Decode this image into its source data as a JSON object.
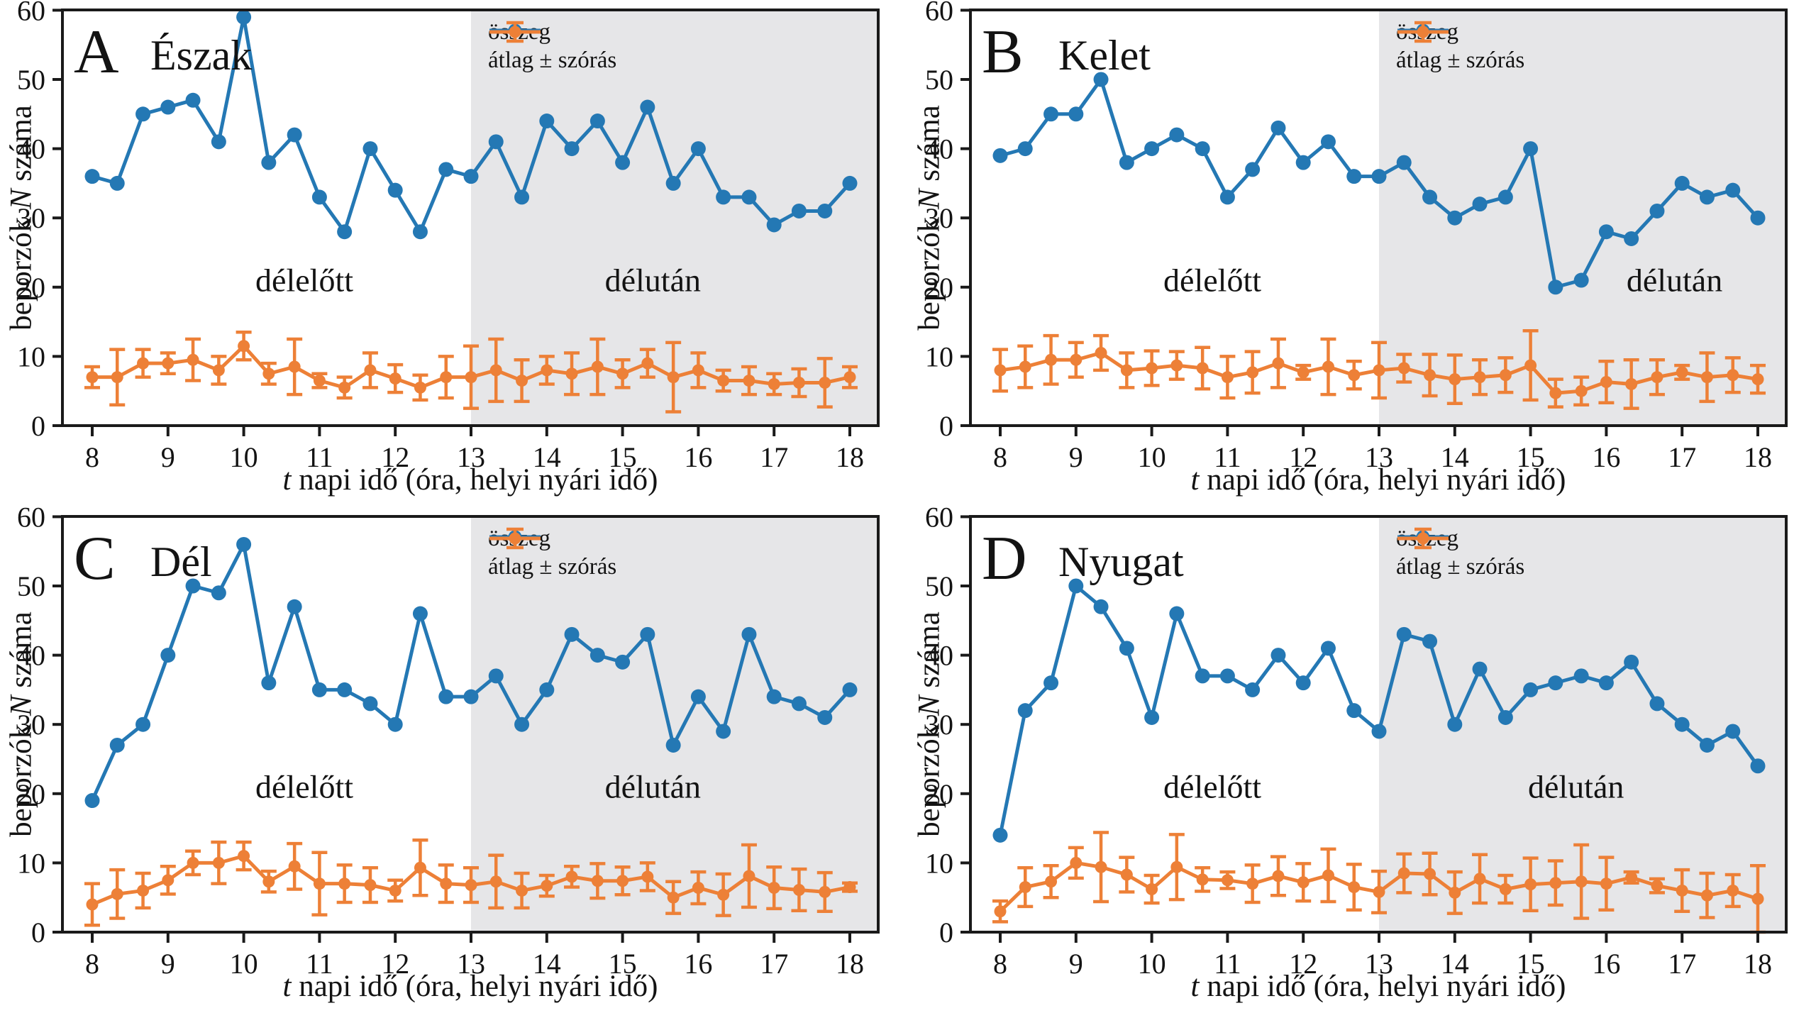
{
  "colors": {
    "blue": "#2478b4",
    "orange": "#ed8037",
    "shade": "#e6e6e8",
    "text": "#131313",
    "axis": "#1a1a1a"
  },
  "legend": {
    "total": "összeg",
    "mean": "átlag ± szórás"
  },
  "labels": {
    "morning": "délelőtt",
    "afternoon": "délután",
    "ylabel_pre": "beporzók ",
    "ylabel_it": "N",
    "ylabel_post": " száma",
    "xlabel_it": "t",
    "xlabel_post": " napi idő (óra, helyi nyári idő)"
  },
  "chart_data": {
    "type": "line",
    "x": [
      8,
      8.33,
      8.67,
      9,
      9.33,
      9.67,
      10,
      10.33,
      10.67,
      11,
      11.33,
      11.67,
      12,
      12.33,
      12.67,
      13,
      13.33,
      13.67,
      14,
      14.33,
      14.67,
      15,
      15.33,
      15.67,
      16,
      16.33,
      16.67,
      17,
      17.33,
      17.67,
      18
    ],
    "xticks": [
      8,
      9,
      10,
      11,
      12,
      13,
      14,
      15,
      16,
      17,
      18
    ],
    "yticks": [
      0,
      10,
      20,
      30,
      40,
      50,
      60
    ],
    "ylim": [
      0,
      60
    ],
    "xlim": [
      8,
      18
    ],
    "afternoon_start": 13,
    "grid": false,
    "legend_position": "top-right",
    "series_names": [
      "összeg",
      "átlag ± szórás"
    ],
    "panels": [
      {
        "letter": "A",
        "title": "Észak",
        "total": [
          36,
          35,
          45,
          46,
          47,
          41,
          59,
          38,
          42,
          33,
          28,
          40,
          34,
          28,
          37,
          36,
          41,
          33,
          44,
          40,
          44,
          38,
          46,
          35,
          40,
          33,
          33,
          29,
          31,
          31,
          35
        ],
        "mean": [
          7,
          7,
          9,
          9,
          9.5,
          8,
          11.5,
          7.5,
          8.5,
          6.5,
          5.5,
          8,
          6.8,
          5.5,
          7,
          7,
          8,
          6.5,
          8,
          7.5,
          8.5,
          7.5,
          9,
          7,
          8,
          6.5,
          6.5,
          6,
          6.2,
          6.2,
          7
        ],
        "sd": [
          1.5,
          4,
          2,
          1.5,
          3,
          2,
          2,
          1.5,
          4,
          1,
          1.5,
          2.5,
          2,
          1.8,
          3,
          4.5,
          4.5,
          3,
          2,
          3,
          4,
          2,
          2,
          5,
          2.5,
          1.5,
          2,
          1.5,
          2,
          3.5,
          1.5
        ],
        "morning_label_t": 10.8,
        "afternoon_label_t": 15.4,
        "label_v": 21
      },
      {
        "letter": "B",
        "title": "Kelet",
        "total": [
          39,
          40,
          45,
          45,
          50,
          38,
          40,
          42,
          40,
          33,
          37,
          43,
          38,
          41,
          36,
          36,
          38,
          33,
          30,
          32,
          33,
          40,
          20,
          21,
          28,
          27,
          31,
          35,
          33,
          34,
          30
        ],
        "mean": [
          8,
          8.5,
          9.5,
          9.5,
          10.5,
          8,
          8.3,
          8.7,
          8.3,
          7,
          7.7,
          9,
          7.7,
          8.5,
          7.3,
          8,
          8.3,
          7.3,
          6.7,
          7,
          7.3,
          8.7,
          4.7,
          5,
          6.3,
          6,
          7,
          7.7,
          7,
          7.3,
          6.7
        ],
        "sd": [
          3,
          3,
          3.5,
          2.5,
          2.5,
          2.5,
          2.5,
          2,
          3,
          3,
          3,
          3.5,
          1,
          4,
          2,
          4,
          2,
          3,
          3.5,
          2.5,
          2.5,
          5,
          2,
          2,
          3,
          3.5,
          2.5,
          1,
          3.5,
          2.5,
          2
        ],
        "morning_label_t": 10.8,
        "afternoon_label_t": 16.9,
        "label_v": 21
      },
      {
        "letter": "C",
        "title": "Dél",
        "total": [
          19,
          27,
          30,
          40,
          50,
          49,
          56,
          36,
          47,
          35,
          35,
          33,
          30,
          46,
          34,
          34,
          37,
          30,
          35,
          43,
          40,
          39,
          43,
          27,
          34,
          29,
          43,
          34,
          33,
          31,
          35
        ],
        "mean": [
          4,
          5.5,
          6,
          7.5,
          10,
          10,
          11,
          7.3,
          9.5,
          7,
          7,
          6.8,
          6,
          9.3,
          7,
          6.8,
          7.3,
          6,
          6.7,
          8,
          7.4,
          7.4,
          8,
          5,
          6.4,
          5.4,
          8.1,
          6.4,
          6.1,
          5.8,
          6.5
        ],
        "sd": [
          3,
          3.5,
          2.5,
          2,
          1.7,
          3,
          2,
          1.5,
          3.3,
          4.5,
          2.7,
          2.5,
          1.5,
          4,
          2.7,
          2.5,
          3.8,
          2.5,
          1.5,
          1.5,
          2.5,
          2,
          2,
          2.3,
          2.3,
          3,
          4.5,
          3,
          3,
          2.8,
          0.6
        ],
        "morning_label_t": 10.8,
        "afternoon_label_t": 15.4,
        "label_v": 21
      },
      {
        "letter": "D",
        "title": "Nyugat",
        "total": [
          14,
          32,
          36,
          50,
          47,
          41,
          31,
          46,
          37,
          37,
          35,
          40,
          36,
          41,
          32,
          29,
          43,
          42,
          30,
          38,
          31,
          35,
          36,
          37,
          36,
          39,
          33,
          30,
          27,
          29,
          24
        ],
        "mean": [
          3,
          6.5,
          7.3,
          10,
          9.4,
          8.3,
          6.2,
          9.4,
          7.6,
          7.5,
          7,
          8.1,
          7.2,
          8.2,
          6.5,
          5.8,
          8.5,
          8.4,
          5.7,
          7.7,
          6.2,
          6.9,
          7.1,
          7.3,
          7,
          7.9,
          6.7,
          6,
          5.3,
          6,
          4.8
        ],
        "sd": [
          1.5,
          2.8,
          2.3,
          2.2,
          5,
          2.5,
          2,
          4.7,
          1.7,
          1.2,
          2.7,
          2.8,
          2.7,
          3.8,
          3.3,
          3,
          2.8,
          3,
          3,
          3.5,
          2,
          3.8,
          3.2,
          5.3,
          3.8,
          0.8,
          1,
          3,
          3.2,
          2.3,
          4.8
        ],
        "morning_label_t": 10.8,
        "afternoon_label_t": 15.6,
        "label_v": 21
      }
    ]
  }
}
